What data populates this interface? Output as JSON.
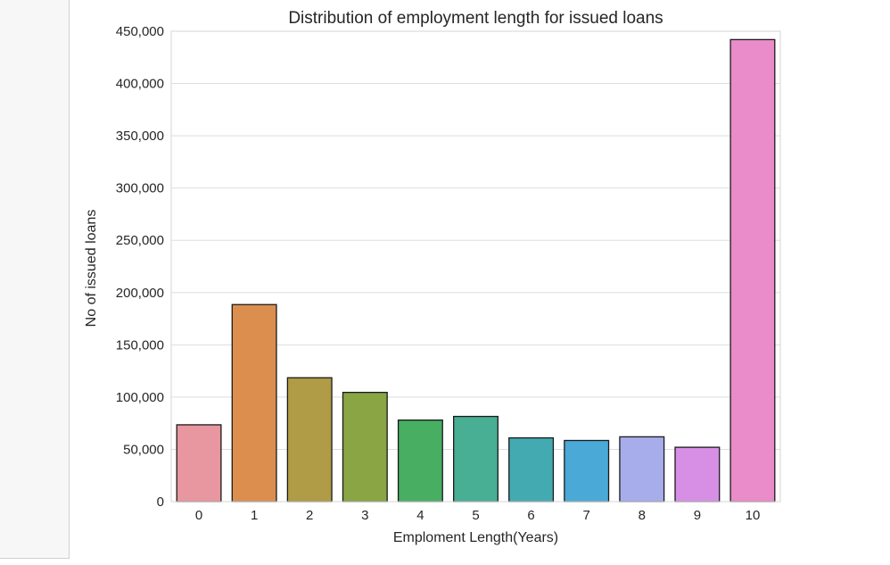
{
  "chart_data": {
    "type": "bar",
    "title": "Distribution of employment length for issued loans",
    "xlabel": "Emploment Length(Years)",
    "ylabel": "No of issued loans",
    "categories": [
      "0",
      "1",
      "2",
      "3",
      "4",
      "5",
      "6",
      "7",
      "8",
      "9",
      "10"
    ],
    "values": [
      73500,
      188500,
      118500,
      104500,
      78000,
      81500,
      61000,
      58500,
      62000,
      52000,
      442000
    ],
    "ylim": [
      0,
      450000
    ],
    "yticks": [
      0,
      50000,
      100000,
      150000,
      200000,
      250000,
      300000,
      350000,
      400000,
      450000
    ],
    "ytick_labels": [
      "0",
      "50,000",
      "100,000",
      "150,000",
      "200,000",
      "250,000",
      "300,000",
      "350,000",
      "400,000",
      "450,000"
    ],
    "colors": [
      "#e8969f",
      "#dc8e4f",
      "#b09b46",
      "#89a544",
      "#47ae62",
      "#48ae94",
      "#44aab1",
      "#4aa9d6",
      "#a7aceb",
      "#d78fe6",
      "#e98cc9"
    ],
    "grid": true,
    "style": "seaborn-whitegrid"
  }
}
